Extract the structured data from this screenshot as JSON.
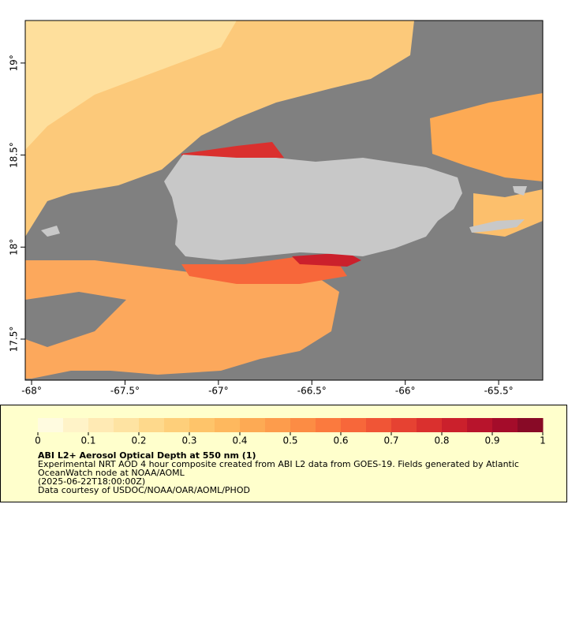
{
  "map": {
    "xlim": [
      -68.034,
      -65.264
    ],
    "ylim": [
      17.277,
      19.231
    ],
    "xticks": [
      {
        "value": -68,
        "label": "-68°"
      },
      {
        "value": -67.5,
        "label": "-67.5°"
      },
      {
        "value": -67,
        "label": "-67°"
      },
      {
        "value": -66.5,
        "label": "-66.5°"
      },
      {
        "value": -66,
        "label": "-66°"
      },
      {
        "value": -65.5,
        "label": "-65.5°"
      }
    ],
    "yticks": [
      {
        "value": 17.5,
        "label": "17.5°"
      },
      {
        "value": 18,
        "label": "18°"
      },
      {
        "value": 18.5,
        "label": "18.5°"
      },
      {
        "value": 19,
        "label": "19°"
      }
    ]
  },
  "colorbar": {
    "range": [
      0,
      1
    ],
    "ticks": [
      0,
      0.1,
      0.2,
      0.3,
      0.4,
      0.5,
      0.6,
      0.7,
      0.8,
      0.9,
      1
    ],
    "colors": [
      "#fffbe0",
      "#fff3c8",
      "#ffeab4",
      "#fee3a2",
      "#fed98c",
      "#fecf7a",
      "#fec46a",
      "#feb85e",
      "#fdaa54",
      "#fd9c4c",
      "#fc8c44",
      "#fb7a3e",
      "#f7673a",
      "#f05536",
      "#e64232",
      "#da302e",
      "#cb202c",
      "#b8142c",
      "#a40c2a",
      "#880a26"
    ]
  },
  "caption": {
    "title": "ABI L2+ Aerosol Optical Depth at 550 nm (1)",
    "lines": [
      "Experimental NRT AOD 4 hour composite created from ABI L2 data from GOES-19. Fields generated by Atlantic",
      "OceanWatch node at NOAA/AOML",
      "(2025-06-22T18:00:00Z)",
      "Data courtesy of USDOC/NOAA/OAR/AOML/PHOD"
    ]
  }
}
